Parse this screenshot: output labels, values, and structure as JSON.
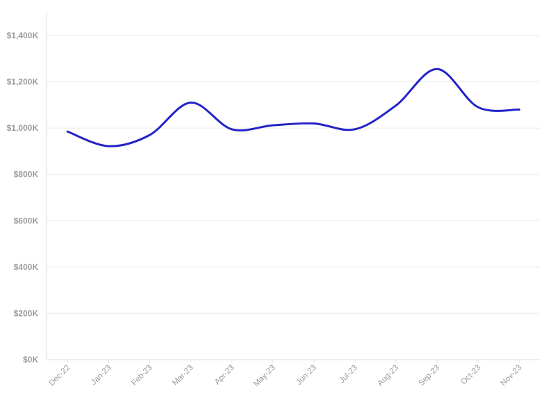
{
  "chart_data": {
    "type": "line",
    "title": "",
    "xlabel": "",
    "ylabel": "",
    "x": [
      "Dec-22",
      "Jan-23",
      "Feb-23",
      "Mar-23",
      "Apr-23",
      "May-23",
      "Jun-23",
      "Jul-23",
      "Aug-23",
      "Sep-23",
      "Oct-23",
      "Nov-23"
    ],
    "series": [
      {
        "name": "",
        "values": [
          985000,
          922000,
          970000,
          1110000,
          995000,
          1012000,
          1020000,
          995000,
          1098000,
          1255000,
          1090000,
          1080000
        ]
      }
    ],
    "ylim": [
      0,
      1400000
    ],
    "y_ticks": [
      0,
      200000,
      400000,
      600000,
      800000,
      1000000,
      1200000,
      1400000
    ],
    "y_tick_labels": [
      "$0K",
      "$200K",
      "$400K",
      "$600K",
      "$800K",
      "$1,000K",
      "$1,200K",
      "$1,400K"
    ],
    "grid": true,
    "legend": "none",
    "colors": {
      "line": "#2323c8"
    }
  }
}
